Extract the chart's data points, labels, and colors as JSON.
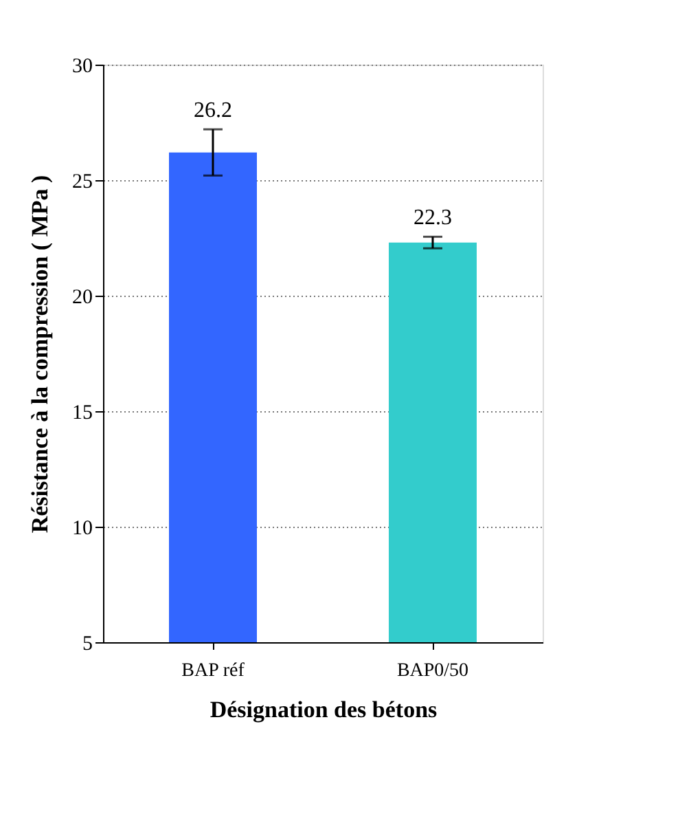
{
  "chart_data": {
    "type": "bar",
    "xlabel": "Désignation des bétons",
    "ylabel": "Résistance à la compression ( MPa )",
    "categories": [
      "BAP réf",
      "BAP0/50"
    ],
    "values": [
      26.2,
      22.3
    ],
    "colors": [
      "#3366ff",
      "#33cccc"
    ],
    "errors": [
      1.0,
      0.25
    ],
    "data_labels": true,
    "ylim": [
      5,
      30
    ],
    "yticks": [
      5,
      10,
      15,
      20,
      25,
      30
    ],
    "grid": "y"
  }
}
